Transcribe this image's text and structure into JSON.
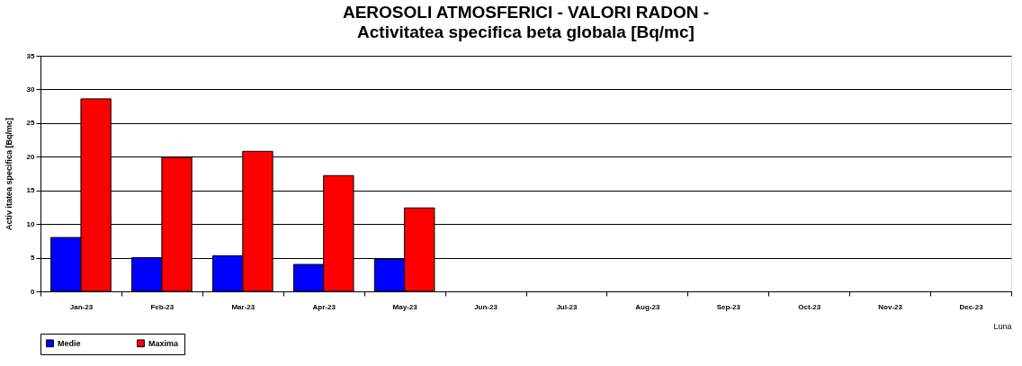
{
  "chart_data": {
    "type": "bar",
    "title": "AEROSOLI ATMOSFERICI - VALORI RADON -",
    "subtitle": "Activitatea specifica beta globala [Bq/mc]",
    "ylabel": "Activ itatea specifica [Bq/mc]",
    "xlabel": "Luna",
    "categories": [
      "Jan-23",
      "Feb-23",
      "Mar-23",
      "Apr-23",
      "May-23",
      "Jun-23",
      "Jul-23",
      "Aug-23",
      "Sep-23",
      "Oct-23",
      "Nov-23",
      "Dec-23"
    ],
    "series": [
      {
        "name": "Medie",
        "color": "#0000ff",
        "values": [
          8.0,
          5.0,
          5.3,
          4.0,
          4.8,
          null,
          null,
          null,
          null,
          null,
          null,
          null
        ]
      },
      {
        "name": "Maxima",
        "color": "#ff0000",
        "values": [
          28.6,
          19.9,
          20.8,
          17.2,
          12.4,
          null,
          null,
          null,
          null,
          null,
          null,
          null
        ]
      }
    ],
    "ylim": [
      0,
      35
    ],
    "yticks": [
      0,
      5,
      10,
      15,
      20,
      25,
      30,
      35
    ],
    "grid": "y",
    "legend": "bottom"
  }
}
